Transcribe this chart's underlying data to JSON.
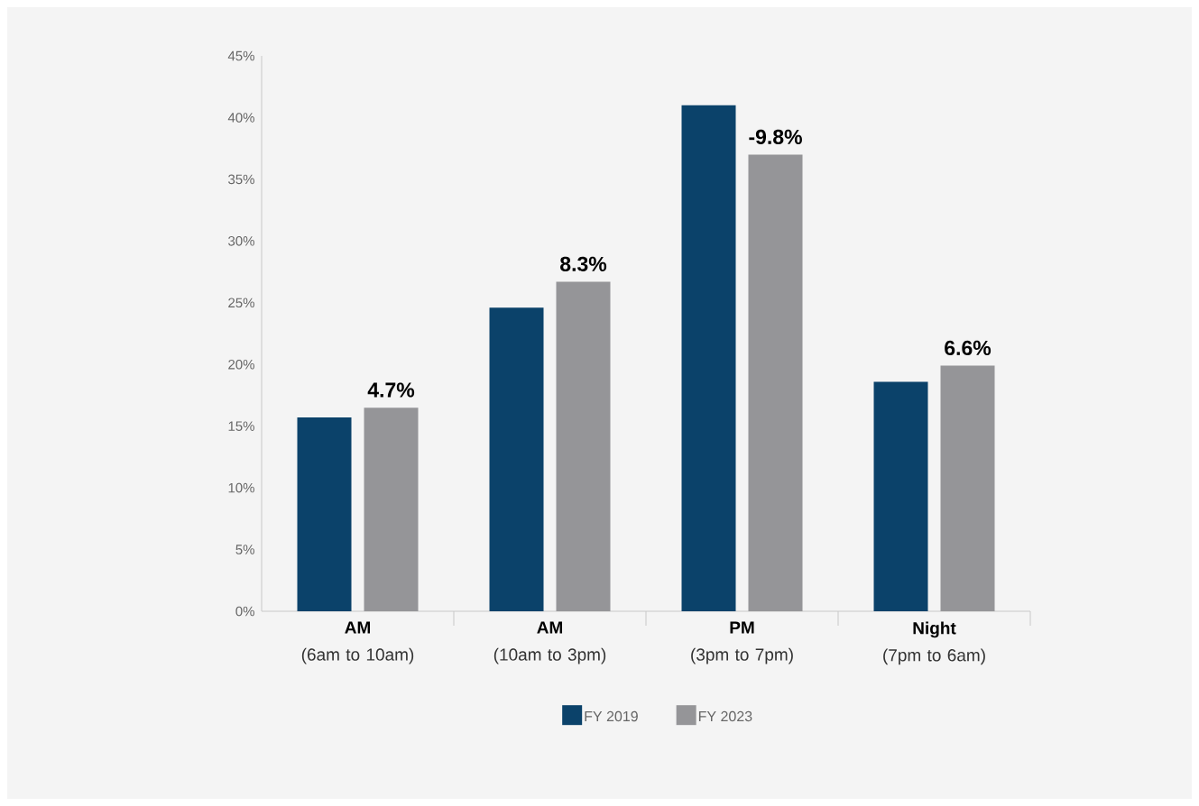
{
  "chart_data": {
    "type": "bar",
    "categories": [
      "**AM** (6am to 10am)",
      "**AM** (10am to 3pm)",
      "**PM** (3pm to 7pm)",
      "**Night** (7pm to 6am)"
    ],
    "series": [
      {
        "name": "FY 2019",
        "color": "#0b426a",
        "values": [
          15.7,
          24.6,
          41.0,
          18.6
        ]
      },
      {
        "name": "FY 2023",
        "color": "#959598",
        "values": [
          16.5,
          26.7,
          37.0,
          19.9
        ]
      }
    ],
    "annotations": [
      "4.7%",
      "8.3%",
      "-9.8%",
      "6.6%"
    ],
    "ylim": [
      0,
      45
    ],
    "yticks": [
      {
        "value": 0,
        "label": "0%"
      },
      {
        "value": 5,
        "label": "5%"
      },
      {
        "value": 10,
        "label": "10%"
      },
      {
        "value": 15,
        "label": "15%"
      },
      {
        "value": 20,
        "label": "20%"
      },
      {
        "value": 25,
        "label": "25%"
      },
      {
        "value": 30,
        "label": "30%"
      },
      {
        "value": 35,
        "label": "35%"
      },
      {
        "value": 40,
        "label": "40%"
      },
      {
        "value": 45,
        "label": "45%"
      }
    ],
    "grid": false,
    "legend": "bottom"
  }
}
